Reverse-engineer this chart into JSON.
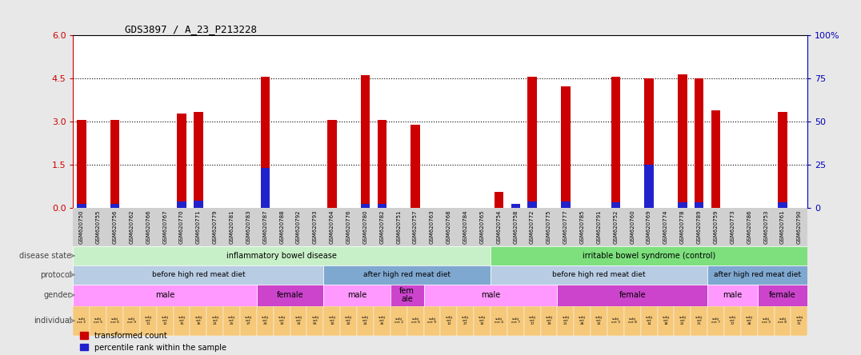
{
  "title": "GDS3897 / A_23_P213228",
  "samples": [
    "GSM620750",
    "GSM620755",
    "GSM620756",
    "GSM620762",
    "GSM620766",
    "GSM620767",
    "GSM620770",
    "GSM620771",
    "GSM620779",
    "GSM620781",
    "GSM620783",
    "GSM620787",
    "GSM620788",
    "GSM620792",
    "GSM620793",
    "GSM620764",
    "GSM620776",
    "GSM620780",
    "GSM620782",
    "GSM620751",
    "GSM620757",
    "GSM620763",
    "GSM620768",
    "GSM620784",
    "GSM620765",
    "GSM620754",
    "GSM620758",
    "GSM620772",
    "GSM620775",
    "GSM620777",
    "GSM620785",
    "GSM620791",
    "GSM620752",
    "GSM620760",
    "GSM620769",
    "GSM620774",
    "GSM620778",
    "GSM620789",
    "GSM620759",
    "GSM620773",
    "GSM620786",
    "GSM620753",
    "GSM620761",
    "GSM620790"
  ],
  "red_values": [
    3.07,
    0.0,
    3.05,
    0.0,
    0.0,
    0.0,
    3.28,
    3.35,
    0.0,
    0.0,
    0.0,
    4.55,
    0.0,
    0.0,
    0.0,
    3.05,
    0.0,
    4.62,
    3.05,
    0.0,
    2.9,
    0.0,
    0.0,
    0.0,
    0.0,
    0.55,
    0.0,
    4.55,
    0.0,
    4.22,
    0.0,
    0.0,
    4.55,
    0.0,
    4.52,
    0.0,
    4.65,
    4.52,
    3.38,
    0.0,
    0.0,
    0.0,
    3.35,
    0.0
  ],
  "blue_values": [
    0.12,
    0.0,
    0.12,
    0.0,
    0.0,
    0.0,
    0.22,
    0.25,
    0.0,
    0.0,
    0.0,
    1.38,
    0.0,
    0.0,
    0.0,
    0.0,
    0.0,
    0.12,
    0.12,
    0.0,
    0.0,
    0.0,
    0.0,
    0.0,
    0.0,
    0.0,
    0.12,
    0.22,
    0.0,
    0.22,
    0.0,
    0.0,
    0.18,
    0.0,
    1.5,
    0.0,
    0.18,
    0.18,
    0.0,
    0.0,
    0.0,
    0.0,
    0.18,
    0.0
  ],
  "ylim": [
    0,
    6
  ],
  "yticks_left": [
    0,
    1.5,
    3.0,
    4.5,
    6
  ],
  "yticks_right": [
    0,
    25,
    50,
    75,
    100
  ],
  "disease_state_groups": [
    {
      "label": "inflammatory bowel disease",
      "start": 0,
      "end": 25,
      "color": "#c8f0c8"
    },
    {
      "label": "irritable bowel syndrome (control)",
      "start": 25,
      "end": 44,
      "color": "#7de07d"
    }
  ],
  "protocol_groups": [
    {
      "label": "before high red meat diet",
      "start": 0,
      "end": 15,
      "color": "#b8cce4"
    },
    {
      "label": "after high red meat diet",
      "start": 15,
      "end": 25,
      "color": "#7fa8d0"
    },
    {
      "label": "before high red meat diet",
      "start": 25,
      "end": 38,
      "color": "#b8cce4"
    },
    {
      "label": "after high red meat diet",
      "start": 38,
      "end": 44,
      "color": "#7fa8d0"
    }
  ],
  "gender_groups": [
    {
      "label": "male",
      "start": 0,
      "end": 11,
      "color": "#ff99ff"
    },
    {
      "label": "female",
      "start": 11,
      "end": 15,
      "color": "#cc44cc"
    },
    {
      "label": "male",
      "start": 15,
      "end": 19,
      "color": "#ff99ff"
    },
    {
      "label": "fem\nale",
      "start": 19,
      "end": 21,
      "color": "#cc44cc"
    },
    {
      "label": "male",
      "start": 21,
      "end": 29,
      "color": "#ff99ff"
    },
    {
      "label": "female",
      "start": 29,
      "end": 38,
      "color": "#cc44cc"
    },
    {
      "label": "male",
      "start": 38,
      "end": 41,
      "color": "#ff99ff"
    },
    {
      "label": "female",
      "start": 41,
      "end": 44,
      "color": "#cc44cc"
    }
  ],
  "individual_labels": [
    "subj\nect 2",
    "subj\nect 5",
    "subj\nect 6",
    "subj\nect 9",
    "subj\nect\n11",
    "subj\nect\n12",
    "subj\nect\n15",
    "subj\nect\n16",
    "subj\nect\n23",
    "subj\nect\n25",
    "subj\nect\n27",
    "subj\nect\n29",
    "subj\nect\n30",
    "subj\nect\n33",
    "subj\nect\n56",
    "subj\nect\n10",
    "subj\nect\n20",
    "subj\nect\n24",
    "subj\nect\n26",
    "subj\nect 2",
    "subj\nect 6",
    "subj\nect 9",
    "subj\nect\n12",
    "subj\nect\n27",
    "subj\nect\n10",
    "subj\nect 4",
    "subj\nect 7",
    "subj\nect\n17",
    "subj\nect\n19",
    "subj\nect\n21",
    "subj\nect\n28",
    "subj\nect\n32",
    "subj\nect 3",
    "subj\nect 8",
    "subj\nect\n14",
    "subj\nect\n18",
    "subj\nect\n22",
    "subj\nect\n31",
    "subj\nect 7",
    "subj\nect\n17",
    "subj\nect\n28",
    "subj\nect 3",
    "subj\nect 8",
    "subj\nect\n31"
  ],
  "individual_color": "#f5c87a",
  "row_label_color": "#444444",
  "bar_color_red": "#cc0000",
  "bar_color_blue": "#2222cc",
  "axis_label_color": "#cc0000",
  "right_axis_color": "#0000bb",
  "background_color": "#e8e8e8",
  "plot_bg_color": "#ffffff",
  "xtick_bg_color": "#d0d0d0",
  "legend_red_label": "transformed count",
  "legend_blue_label": "percentile rank within the sample"
}
